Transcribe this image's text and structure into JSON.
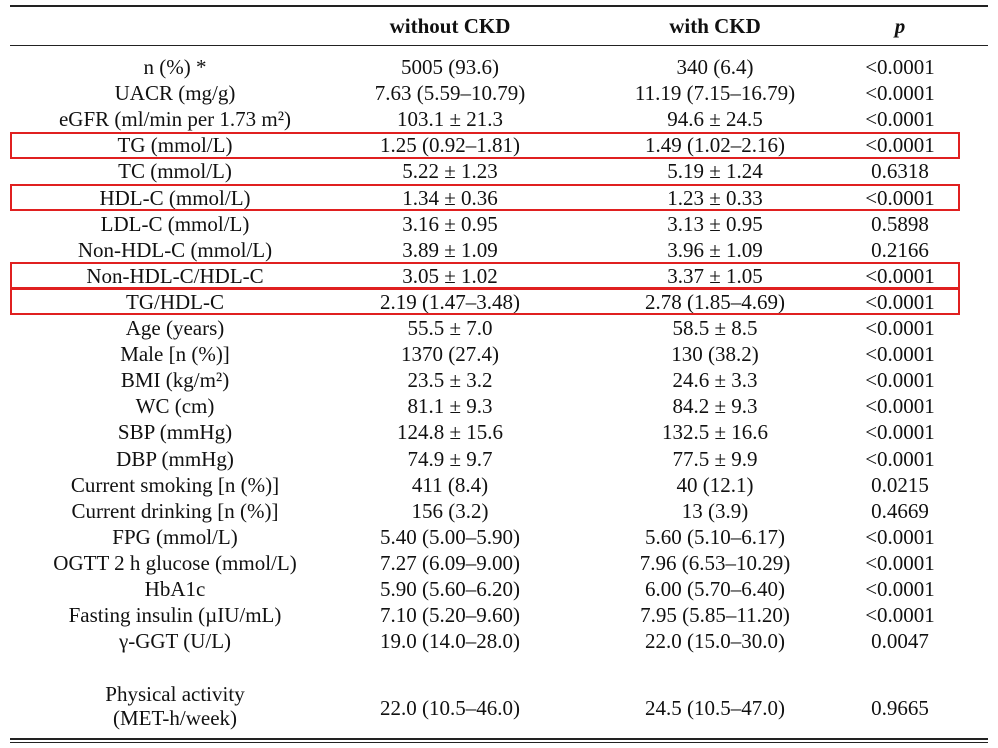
{
  "header": {
    "col1": "",
    "col2": "without CKD",
    "col3": "with CKD",
    "col4": "p"
  },
  "rows": [
    {
      "label": "n (%) *",
      "without": "5005 (93.6)",
      "with": "340 (6.4)",
      "p": "<0.0001"
    },
    {
      "label": "UACR (mg/g)",
      "without": "7.63 (5.59–10.79)",
      "with": "11.19 (7.15–16.79)",
      "p": "<0.0001"
    },
    {
      "label": "eGFR (ml/min per 1.73 m²)",
      "without": "103.1 ± 21.3",
      "with": "94.6 ± 24.5",
      "p": "<0.0001"
    },
    {
      "label": "TG (mmol/L)",
      "without": "1.25 (0.92–1.81)",
      "with": "1.49 (1.02–2.16)",
      "p": "<0.0001",
      "highlighted": true
    },
    {
      "label": "TC (mmol/L)",
      "without": "5.22 ± 1.23",
      "with": "5.19 ± 1.24",
      "p": "0.6318"
    },
    {
      "label": "HDL-C (mmol/L)",
      "without": "1.34 ± 0.36",
      "with": "1.23 ± 0.33",
      "p": "<0.0001",
      "highlighted": true
    },
    {
      "label": "LDL-C (mmol/L)",
      "without": "3.16 ± 0.95",
      "with": "3.13 ± 0.95",
      "p": "0.5898"
    },
    {
      "label": "Non-HDL-C (mmol/L)",
      "without": "3.89 ± 1.09",
      "with": "3.96 ± 1.09",
      "p": "0.2166"
    },
    {
      "label": "Non-HDL-C/HDL-C",
      "without": "3.05 ± 1.02",
      "with": "3.37 ± 1.05",
      "p": "<0.0001",
      "highlighted": true
    },
    {
      "label": "TG/HDL-C",
      "without": "2.19 (1.47–3.48)",
      "with": "2.78 (1.85–4.69)",
      "p": "<0.0001",
      "highlighted": true
    },
    {
      "label": "Age (years)",
      "without": "55.5 ± 7.0",
      "with": "58.5 ± 8.5",
      "p": "<0.0001"
    },
    {
      "label": "Male [n (%)]",
      "without": "1370 (27.4)",
      "with": "130 (38.2)",
      "p": "<0.0001"
    },
    {
      "label": "BMI (kg/m²)",
      "without": "23.5 ± 3.2",
      "with": "24.6 ± 3.3",
      "p": "<0.0001"
    },
    {
      "label": "WC (cm)",
      "without": "81.1 ± 9.3",
      "with": "84.2 ± 9.3",
      "p": "<0.0001"
    },
    {
      "label": "SBP (mmHg)",
      "without": "124.8 ± 15.6",
      "with": "132.5 ± 16.6",
      "p": "<0.0001"
    },
    {
      "label": "DBP (mmHg)",
      "without": "74.9 ± 9.7",
      "with": "77.5 ± 9.9",
      "p": "<0.0001"
    },
    {
      "label": "Current smoking [n (%)]",
      "without": "411 (8.4)",
      "with": "40 (12.1)",
      "p": "0.0215"
    },
    {
      "label": "Current drinking [n (%)]",
      "without": "156 (3.2)",
      "with": "13 (3.9)",
      "p": "0.4669"
    },
    {
      "label": "FPG (mmol/L)",
      "without": "5.40 (5.00–5.90)",
      "with": "5.60 (5.10–6.17)",
      "p": "<0.0001"
    },
    {
      "label": "OGTT 2 h glucose (mmol/L)",
      "without": "7.27 (6.09–9.00)",
      "with": "7.96 (6.53–10.29)",
      "p": "<0.0001"
    },
    {
      "label": "HbA1c",
      "without": "5.90 (5.60–6.20)",
      "with": "6.00 (5.70–6.40)",
      "p": "<0.0001"
    },
    {
      "label": "Fasting insulin (µIU/mL)",
      "without": "7.10 (5.20–9.60)",
      "with": "7.95 (5.85–11.20)",
      "p": "<0.0001"
    },
    {
      "label": "γ-GGT (U/L)",
      "without": "19.0 (14.0–28.0)",
      "with": "22.0 (15.0–30.0)",
      "p": "0.0047"
    }
  ],
  "last_row": {
    "label_line1": "Physical activity",
    "label_line2": "(MET-h/week)",
    "without": "22.0 (10.5–46.0)",
    "with": "24.5 (10.5–47.0)",
    "p": "0.9665"
  },
  "highlight_color": "#e02020"
}
